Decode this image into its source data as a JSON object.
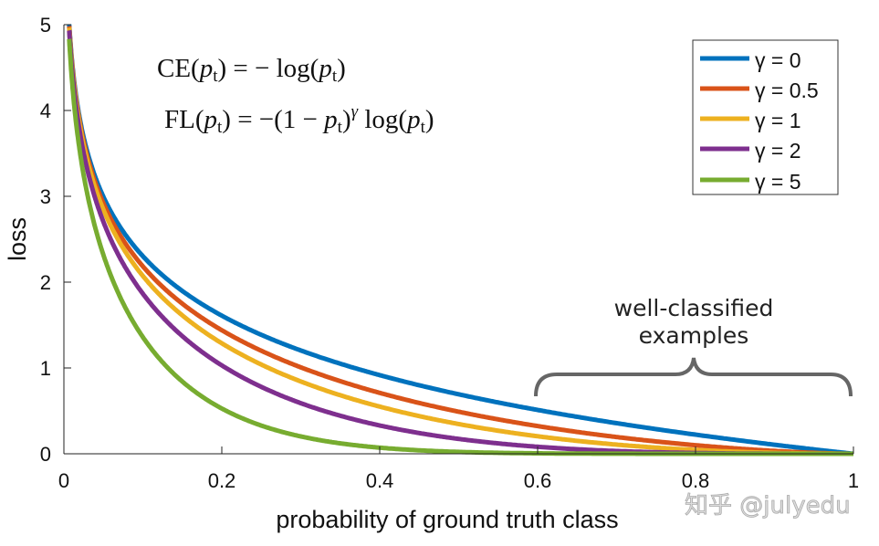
{
  "chart_data": {
    "type": "line",
    "title": "",
    "xlabel": "probability of ground truth class",
    "ylabel": "loss",
    "xlim": [
      0,
      1
    ],
    "ylim": [
      0,
      5
    ],
    "xticks": [
      "0",
      "0.2",
      "0.4",
      "0.6",
      "0.8",
      "1"
    ],
    "xtick_values": [
      0,
      0.2,
      0.4,
      0.6,
      0.8,
      1
    ],
    "yticks": [
      "0",
      "1",
      "2",
      "3",
      "4",
      "5"
    ],
    "ytick_values": [
      0,
      1,
      2,
      3,
      4,
      5
    ],
    "grid": false,
    "legend_position": "top-right",
    "function": "FL(p) = -(1-p)^gamma * log(p)",
    "series": [
      {
        "name": "γ = 0",
        "gamma": 0,
        "color": "#0072BD"
      },
      {
        "name": "γ = 0.5",
        "gamma": 0.5,
        "color": "#D95319"
      },
      {
        "name": "γ = 1",
        "gamma": 1,
        "color": "#EDB120"
      },
      {
        "name": "γ = 2",
        "gamma": 2,
        "color": "#7E2F8E"
      },
      {
        "name": "γ = 5",
        "gamma": 5,
        "color": "#77AC30"
      }
    ],
    "formulas": {
      "ce": "CE(pt) = − log(pt)",
      "fl": "FL(pt) = −(1 − pt)γ log(pt)"
    },
    "annotation": {
      "line1": "well-classified",
      "line2": "examples",
      "range": [
        0.6,
        1
      ]
    }
  },
  "watermark": "知乎 @julyedu"
}
